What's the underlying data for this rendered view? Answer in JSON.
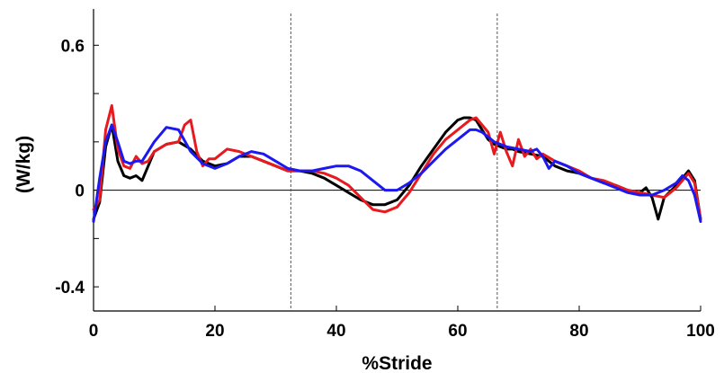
{
  "chart_data": {
    "type": "line",
    "title": "",
    "xlabel": "%Stride",
    "ylabel": "(W/kg)",
    "xlim": [
      0,
      100
    ],
    "ylim": [
      -0.5,
      0.75
    ],
    "x_ticks": [
      0,
      20,
      40,
      60,
      80,
      100
    ],
    "x_tick_labels": [
      "0",
      "20",
      "40",
      "60",
      "80",
      "100"
    ],
    "y_ticks": [
      -0.4,
      0,
      0.6
    ],
    "y_tick_labels": [
      "-0.4",
      "0",
      "0.6"
    ],
    "vlines": [
      32.5,
      66.5
    ],
    "grid": false,
    "legend": "none",
    "series": [
      {
        "color": "#000000",
        "x": [
          0,
          1,
          2,
          3,
          4,
          5,
          6,
          7,
          8,
          9,
          10,
          12,
          14,
          16,
          18,
          20,
          22,
          24,
          26,
          28,
          30,
          32,
          34,
          36,
          38,
          40,
          42,
          44,
          46,
          48,
          50,
          52,
          54,
          56,
          58,
          60,
          61,
          62,
          63,
          64,
          65,
          66,
          67,
          68,
          69,
          70,
          72,
          74,
          75,
          76,
          78,
          80,
          82,
          84,
          86,
          88,
          90,
          91,
          92,
          93,
          94,
          96,
          97,
          98,
          99,
          100
        ],
        "y": [
          -0.12,
          -0.05,
          0.18,
          0.27,
          0.12,
          0.06,
          0.05,
          0.06,
          0.04,
          0.1,
          0.16,
          0.19,
          0.2,
          0.17,
          0.12,
          0.1,
          0.11,
          0.14,
          0.14,
          0.12,
          0.1,
          0.08,
          0.08,
          0.07,
          0.05,
          0.02,
          -0.01,
          -0.04,
          -0.06,
          -0.06,
          -0.04,
          0.02,
          0.1,
          0.17,
          0.24,
          0.29,
          0.3,
          0.3,
          0.29,
          0.25,
          0.21,
          0.19,
          0.18,
          0.17,
          0.17,
          0.16,
          0.15,
          0.14,
          0.12,
          0.1,
          0.08,
          0.07,
          0.05,
          0.03,
          0.02,
          0.0,
          -0.01,
          0.01,
          -0.03,
          -0.12,
          -0.03,
          0.02,
          0.05,
          0.08,
          0.04,
          -0.12
        ]
      },
      {
        "color": "#e8191f",
        "x": [
          0,
          1,
          2,
          3,
          4,
          5,
          6,
          7,
          8,
          9,
          10,
          12,
          14,
          15,
          16,
          17,
          18,
          19,
          20,
          22,
          24,
          26,
          28,
          30,
          32,
          34,
          36,
          38,
          40,
          42,
          44,
          46,
          48,
          50,
          52,
          54,
          56,
          58,
          60,
          62,
          63,
          64,
          65,
          66,
          67,
          68,
          69,
          70,
          71,
          72,
          73,
          74,
          76,
          78,
          80,
          82,
          84,
          86,
          88,
          90,
          92,
          94,
          96,
          98,
          99,
          100
        ],
        "y": [
          -0.08,
          -0.04,
          0.25,
          0.35,
          0.17,
          0.1,
          0.09,
          0.14,
          0.11,
          0.12,
          0.16,
          0.19,
          0.2,
          0.27,
          0.29,
          0.16,
          0.1,
          0.13,
          0.13,
          0.17,
          0.16,
          0.14,
          0.12,
          0.1,
          0.08,
          0.08,
          0.08,
          0.07,
          0.05,
          0.02,
          -0.03,
          -0.08,
          -0.09,
          -0.07,
          -0.01,
          0.07,
          0.15,
          0.21,
          0.25,
          0.29,
          0.3,
          0.27,
          0.24,
          0.15,
          0.24,
          0.16,
          0.1,
          0.21,
          0.14,
          0.17,
          0.13,
          0.15,
          0.12,
          0.1,
          0.08,
          0.05,
          0.04,
          0.02,
          0.0,
          -0.01,
          -0.02,
          -0.03,
          0.01,
          0.07,
          0.03,
          -0.12
        ]
      },
      {
        "color": "#1b19ef",
        "x": [
          0,
          1,
          2,
          3,
          4,
          5,
          6,
          7,
          8,
          10,
          12,
          14,
          16,
          18,
          20,
          22,
          24,
          26,
          28,
          30,
          32,
          34,
          36,
          38,
          40,
          42,
          44,
          46,
          48,
          50,
          52,
          54,
          56,
          58,
          60,
          62,
          63,
          64,
          66,
          68,
          70,
          72,
          73,
          74,
          75,
          76,
          78,
          80,
          82,
          84,
          86,
          88,
          90,
          92,
          94,
          96,
          97,
          98,
          99,
          100
        ],
        "y": [
          -0.13,
          0.05,
          0.2,
          0.27,
          0.2,
          0.12,
          0.11,
          0.12,
          0.12,
          0.2,
          0.26,
          0.25,
          0.16,
          0.11,
          0.09,
          0.11,
          0.14,
          0.16,
          0.15,
          0.12,
          0.09,
          0.08,
          0.08,
          0.09,
          0.1,
          0.1,
          0.08,
          0.04,
          0.0,
          0.0,
          0.03,
          0.07,
          0.12,
          0.17,
          0.21,
          0.25,
          0.25,
          0.24,
          0.2,
          0.18,
          0.17,
          0.16,
          0.17,
          0.14,
          0.09,
          0.12,
          0.1,
          0.07,
          0.05,
          0.03,
          0.01,
          -0.01,
          -0.02,
          -0.02,
          0.0,
          0.03,
          0.06,
          0.04,
          -0.02,
          -0.13
        ]
      }
    ]
  }
}
